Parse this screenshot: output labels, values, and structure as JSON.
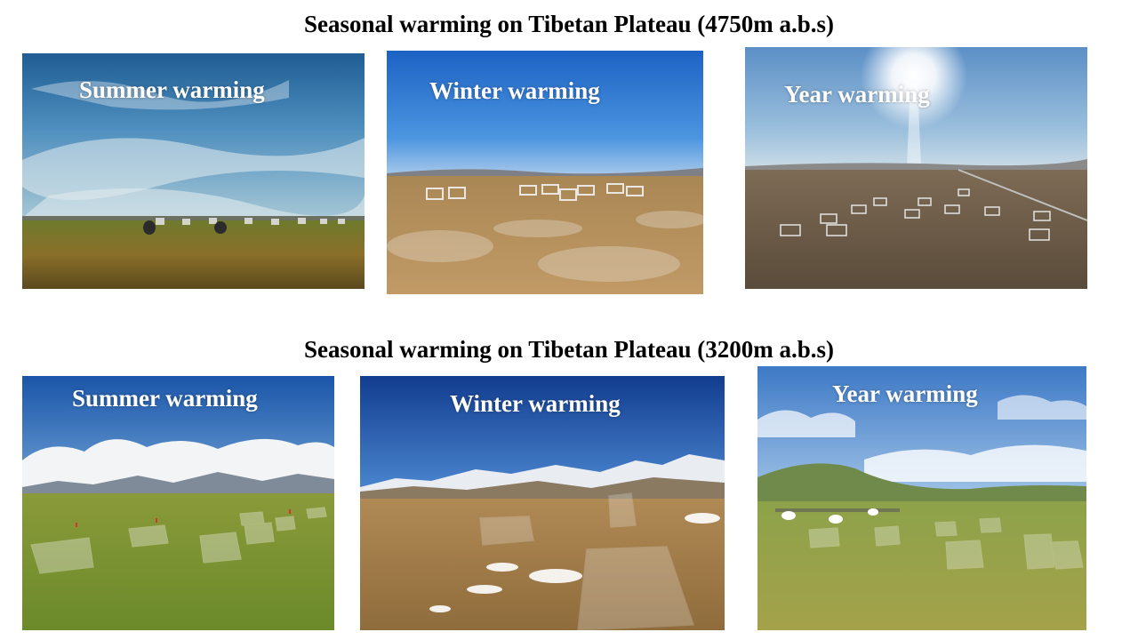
{
  "rows": [
    {
      "heading": "Seasonal warming on Tibetan Plateau (4750m a.b.s)",
      "photos": [
        {
          "caption": "Summer warming"
        },
        {
          "caption": "Winter warming"
        },
        {
          "caption": "Year warming"
        }
      ]
    },
    {
      "heading": "Seasonal warming on Tibetan Plateau (3200m a.b.s)",
      "photos": [
        {
          "caption": "Summer warming"
        },
        {
          "caption": "Winter warming"
        },
        {
          "caption": "Year warming"
        }
      ]
    }
  ]
}
